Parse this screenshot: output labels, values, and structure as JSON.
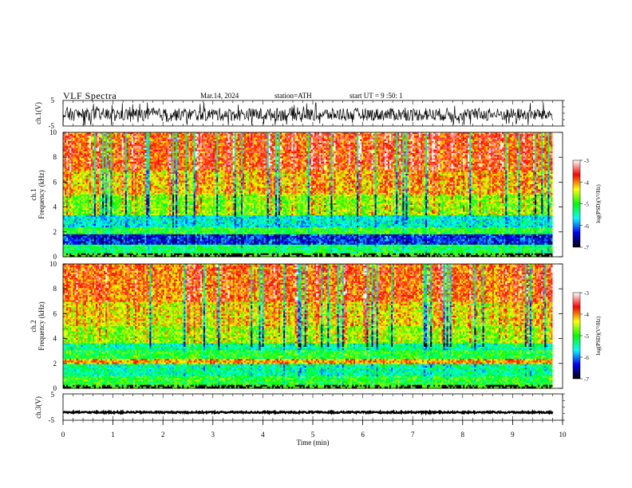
{
  "header": {
    "title": "VLF Spectra",
    "date": "Mar.14, 2024",
    "station": "station=ATH",
    "start_ut": "start UT = 9 :50: 1"
  },
  "colors": {
    "scale": [
      "#000000",
      "#0000ff",
      "#00ffff",
      "#00ff00",
      "#ffff00",
      "#ff0000",
      "#ffffff"
    ]
  },
  "chart_data": [
    {
      "type": "line",
      "id": "ch1-waveform",
      "ylabel": "ch.1(V)",
      "ylim": [
        -5,
        5
      ],
      "yticks": [
        "5",
        "-5"
      ],
      "x_range_min": [
        0,
        9.8
      ],
      "y_level": -0.5,
      "y_amplitude": 2.5
    },
    {
      "type": "heatmap",
      "id": "ch1-spectrogram",
      "ylabel_channel": "ch.1",
      "ylabel": "Frequency (kHz)",
      "ylim": [
        0,
        10
      ],
      "yticks": [
        "0",
        "2",
        "4",
        "6",
        "8",
        "10"
      ],
      "x_range_min": [
        0,
        9.8
      ],
      "colorbar": {
        "label": "log(PSD)(V²/Hz)",
        "range": [
          -7,
          -3
        ],
        "ticks": [
          "-3",
          "-4",
          "-5",
          "-6",
          "-7"
        ]
      },
      "bands_khz": [
        {
          "from": 0,
          "to": 0.3,
          "level": -7
        },
        {
          "from": 0.3,
          "to": 1.0,
          "level": -5.2
        },
        {
          "from": 1.0,
          "to": 1.8,
          "level": -6.3
        },
        {
          "from": 1.8,
          "to": 2.3,
          "level": -5.0
        },
        {
          "from": 2.3,
          "to": 3.3,
          "level": -5.6
        },
        {
          "from": 3.3,
          "to": 5.0,
          "level": -4.7
        },
        {
          "from": 5.0,
          "to": 7.0,
          "level": -4.2
        },
        {
          "from": 7.0,
          "to": 10.0,
          "level": -3.8
        }
      ]
    },
    {
      "type": "heatmap",
      "id": "ch2-spectrogram",
      "ylabel_channel": "ch.2",
      "ylabel": "Frequency (kHz)",
      "ylim": [
        0,
        10
      ],
      "yticks": [
        "0",
        "2",
        "4",
        "6",
        "8",
        "10"
      ],
      "x_range_min": [
        0,
        9.8
      ],
      "colorbar": {
        "label": "log(PSD)(V²/Hz)",
        "range": [
          -7,
          -3
        ],
        "ticks": [
          "-3",
          "-4",
          "-5",
          "-6",
          "-7"
        ]
      },
      "bands_khz": [
        {
          "from": 0,
          "to": 0.3,
          "level": -7
        },
        {
          "from": 0.3,
          "to": 1.0,
          "level": -5.0
        },
        {
          "from": 1.0,
          "to": 1.9,
          "level": -5.4
        },
        {
          "from": 1.9,
          "to": 2.3,
          "level": -4.1
        },
        {
          "from": 2.3,
          "to": 3.0,
          "level": -5.0
        },
        {
          "from": 3.0,
          "to": 3.6,
          "level": -5.4
        },
        {
          "from": 3.6,
          "to": 5.0,
          "level": -4.6
        },
        {
          "from": 5.0,
          "to": 7.0,
          "level": -4.3
        },
        {
          "from": 7.0,
          "to": 10.0,
          "level": -3.9
        }
      ]
    },
    {
      "type": "line",
      "id": "ch3-waveform",
      "ylabel": "ch.3(V)",
      "ylim": [
        -5,
        5
      ],
      "yticks": [
        "5",
        "-5"
      ],
      "x_range_min": [
        0,
        9.8
      ],
      "y_level": -2,
      "y_amplitude": 0.3,
      "xlabel": "Time (min)",
      "xlim": [
        0,
        10
      ],
      "xticks": [
        "0",
        "1",
        "2",
        "3",
        "4",
        "5",
        "6",
        "7",
        "8",
        "9",
        "10"
      ]
    }
  ]
}
